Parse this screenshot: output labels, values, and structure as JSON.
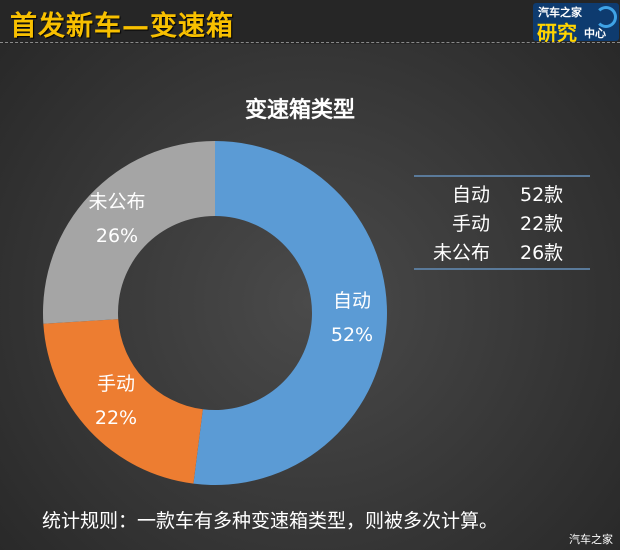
{
  "header": {
    "title": "首发新车—变速箱",
    "logo": {
      "line1": "汽车之家",
      "line2": "研究",
      "line3": "中心"
    }
  },
  "chart_data": {
    "type": "pie",
    "subtype": "donut",
    "title": "变速箱类型",
    "categories": [
      "自动",
      "手动",
      "未公布"
    ],
    "values": [
      52,
      22,
      26
    ],
    "unit": "%",
    "colors": [
      "#5b9bd5",
      "#ed7d31",
      "#a5a5a5"
    ],
    "start_angle": "12 o'clock, clockwise",
    "labels": [
      {
        "name": "自动",
        "pct": "52%"
      },
      {
        "name": "手动",
        "pct": "22%"
      },
      {
        "name": "未公布",
        "pct": "26%"
      }
    ],
    "table": [
      {
        "name": "自动",
        "count": "52款"
      },
      {
        "name": "手动",
        "count": "22款"
      },
      {
        "name": "未公布",
        "count": "26款"
      }
    ]
  },
  "footer": {
    "note": "统计规则：一款车有多种变速箱类型，则被多次计算。",
    "watermark": "汽车之家"
  }
}
